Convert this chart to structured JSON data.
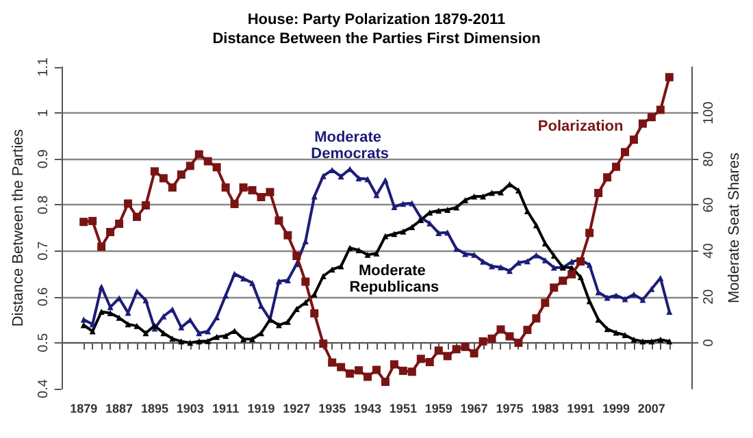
{
  "chart_data": {
    "type": "line",
    "title": "House: Party Polarization 1879-2011",
    "subtitle": "Distance Between the Parties First Dimension",
    "ylabel": "Distance Between the Parties",
    "y2label": "Moderate Seat Shares",
    "x": [
      1879,
      1881,
      1883,
      1885,
      1887,
      1889,
      1891,
      1893,
      1895,
      1897,
      1899,
      1901,
      1903,
      1905,
      1907,
      1909,
      1911,
      1913,
      1915,
      1917,
      1919,
      1921,
      1923,
      1925,
      1927,
      1929,
      1931,
      1933,
      1935,
      1937,
      1939,
      1941,
      1943,
      1945,
      1947,
      1949,
      1951,
      1953,
      1955,
      1957,
      1959,
      1961,
      1963,
      1965,
      1967,
      1969,
      1971,
      1973,
      1975,
      1977,
      1979,
      1981,
      1983,
      1985,
      1987,
      1989,
      1991,
      1993,
      1995,
      1997,
      1999,
      2001,
      2003,
      2005,
      2007,
      2009,
      2011
    ],
    "series": [
      {
        "name": "Polarization",
        "color": "#7a1414",
        "marker": "square",
        "values": [
          0.763,
          0.765,
          0.709,
          0.741,
          0.759,
          0.803,
          0.774,
          0.799,
          0.873,
          0.858,
          0.838,
          0.866,
          0.885,
          0.91,
          0.895,
          0.882,
          0.838,
          0.802,
          0.838,
          0.832,
          0.817,
          0.828,
          0.766,
          0.734,
          0.689,
          0.633,
          0.564,
          0.498,
          0.457,
          0.447,
          0.433,
          0.44,
          0.426,
          0.441,
          0.415,
          0.453,
          0.439,
          0.437,
          0.465,
          0.458,
          0.483,
          0.471,
          0.486,
          0.491,
          0.477,
          0.503,
          0.509,
          0.529,
          0.514,
          0.5,
          0.528,
          0.553,
          0.587,
          0.62,
          0.635,
          0.649,
          0.677,
          0.739,
          0.826,
          0.86,
          0.883,
          0.915,
          0.942,
          0.977,
          0.991,
          1.007,
          1.078
        ]
      },
      {
        "name": "Moderate Democrats",
        "color": "#1c1c78",
        "marker": "triangle",
        "axis": "y2",
        "values": [
          10.1,
          8.1,
          24.4,
          15.5,
          19.4,
          13.1,
          22.4,
          18.5,
          6.2,
          11.5,
          14.5,
          6.7,
          9.9,
          4.2,
          5.0,
          11.1,
          20.6,
          30.0,
          28.0,
          26.0,
          16.1,
          10.1,
          26.8,
          27.2,
          34.3,
          44.2,
          63.7,
          72.6,
          75.2,
          72.4,
          75.6,
          71.6,
          71.2,
          64.3,
          70.8,
          59.1,
          60.5,
          60.7,
          54.4,
          52.0,
          47.8,
          48.0,
          40.9,
          38.7,
          38.3,
          35.3,
          33.3,
          32.9,
          31.3,
          34.9,
          35.5,
          38.1,
          35.9,
          32.7,
          32.7,
          35.3,
          36.1,
          33.9,
          22.0,
          19.6,
          20.6,
          19.0,
          21.0,
          18.7,
          23.4,
          28.2,
          13.5
        ]
      },
      {
        "name": "Moderate Republicans",
        "color": "#000000",
        "marker": "triangle",
        "axis": "y2",
        "values": [
          7.7,
          5.0,
          13.5,
          12.9,
          10.9,
          8.1,
          7.3,
          4.2,
          7.5,
          4.2,
          1.8,
          0.6,
          0,
          0.6,
          0.8,
          2.6,
          3.0,
          5.2,
          1.6,
          1.6,
          4.2,
          10.1,
          7.7,
          9.1,
          14.7,
          17.5,
          21.0,
          29.0,
          31.9,
          33.3,
          41.3,
          40.3,
          38.3,
          38.9,
          46.4,
          47.4,
          48.4,
          50.4,
          53.4,
          56.7,
          57.5,
          57.9,
          58.9,
          62.1,
          63.7,
          63.7,
          65.3,
          65.5,
          69.0,
          66.3,
          57.3,
          51.2,
          43.3,
          37.9,
          32.9,
          32.7,
          28.6,
          18.1,
          10.1,
          6.0,
          4.4,
          3.4,
          1.4,
          0.6,
          0.6,
          1.4,
          0.6
        ]
      }
    ],
    "xlim": [
      1874,
      2016
    ],
    "xticks": [
      {
        "value": 1879,
        "label": "1879"
      },
      {
        "value": 1881,
        "label": null
      },
      {
        "value": 1883,
        "label": null
      },
      {
        "value": 1885,
        "label": null
      },
      {
        "value": 1887,
        "label": "1887"
      },
      {
        "value": 1889,
        "label": null
      },
      {
        "value": 1891,
        "label": null
      },
      {
        "value": 1893,
        "label": null
      },
      {
        "value": 1895,
        "label": "1895"
      },
      {
        "value": 1897,
        "label": null
      },
      {
        "value": 1899,
        "label": null
      },
      {
        "value": 1901,
        "label": null
      },
      {
        "value": 1903,
        "label": "1903"
      },
      {
        "value": 1905,
        "label": null
      },
      {
        "value": 1907,
        "label": null
      },
      {
        "value": 1909,
        "label": null
      },
      {
        "value": 1911,
        "label": "1911"
      },
      {
        "value": 1913,
        "label": null
      },
      {
        "value": 1915,
        "label": null
      },
      {
        "value": 1917,
        "label": null
      },
      {
        "value": 1919,
        "label": "1919"
      },
      {
        "value": 1921,
        "label": null
      },
      {
        "value": 1923,
        "label": null
      },
      {
        "value": 1925,
        "label": null
      },
      {
        "value": 1927,
        "label": "1927"
      },
      {
        "value": 1929,
        "label": null
      },
      {
        "value": 1931,
        "label": null
      },
      {
        "value": 1933,
        "label": null
      },
      {
        "value": 1935,
        "label": "1935"
      },
      {
        "value": 1937,
        "label": null
      },
      {
        "value": 1939,
        "label": null
      },
      {
        "value": 1941,
        "label": null
      },
      {
        "value": 1943,
        "label": "1943"
      },
      {
        "value": 1945,
        "label": null
      },
      {
        "value": 1947,
        "label": null
      },
      {
        "value": 1949,
        "label": null
      },
      {
        "value": 1951,
        "label": "1951"
      },
      {
        "value": 1953,
        "label": null
      },
      {
        "value": 1955,
        "label": null
      },
      {
        "value": 1957,
        "label": null
      },
      {
        "value": 1959,
        "label": "1959"
      },
      {
        "value": 1961,
        "label": null
      },
      {
        "value": 1963,
        "label": null
      },
      {
        "value": 1965,
        "label": null
      },
      {
        "value": 1967,
        "label": "1967"
      },
      {
        "value": 1969,
        "label": null
      },
      {
        "value": 1971,
        "label": null
      },
      {
        "value": 1973,
        "label": null
      },
      {
        "value": 1975,
        "label": "1975"
      },
      {
        "value": 1977,
        "label": null
      },
      {
        "value": 1979,
        "label": null
      },
      {
        "value": 1981,
        "label": null
      },
      {
        "value": 1983,
        "label": "1983"
      },
      {
        "value": 1985,
        "label": null
      },
      {
        "value": 1987,
        "label": null
      },
      {
        "value": 1989,
        "label": null
      },
      {
        "value": 1991,
        "label": "1991"
      },
      {
        "value": 1993,
        "label": null
      },
      {
        "value": 1995,
        "label": null
      },
      {
        "value": 1997,
        "label": null
      },
      {
        "value": 1999,
        "label": "1999"
      },
      {
        "value": 2001,
        "label": null
      },
      {
        "value": 2003,
        "label": null
      },
      {
        "value": 2005,
        "label": null
      },
      {
        "value": 2007,
        "label": "2007"
      },
      {
        "value": 2009,
        "label": null
      },
      {
        "value": 2011,
        "label": null
      }
    ],
    "ylim": [
      0.4,
      1.1
    ],
    "yticks": [
      0.4,
      0.5,
      0.6,
      0.7,
      0.8,
      0.9,
      1.0,
      1.1
    ],
    "y2lim": [
      -20,
      120
    ],
    "y2ticks": [
      0,
      20,
      40,
      60,
      80,
      100
    ],
    "grid": "y2",
    "legend": false,
    "line_style": "solid"
  }
}
